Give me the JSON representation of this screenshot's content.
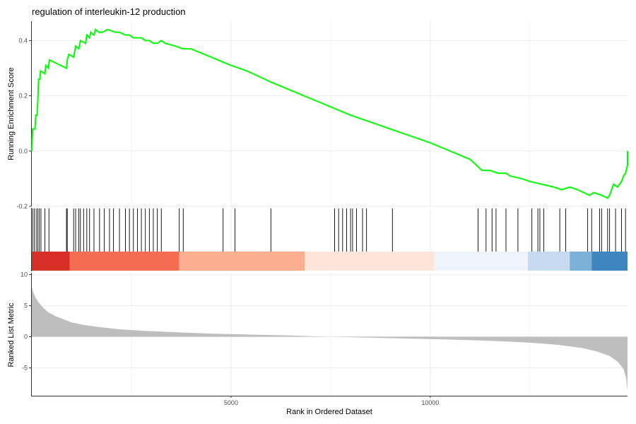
{
  "chart_data": {
    "type": "line",
    "title": "regulation of interleukin-12 production",
    "xlabel": "Rank in Ordered Dataset",
    "xlim": [
      0,
      14950
    ],
    "x_ticks": [
      5000,
      10000
    ],
    "grid": true,
    "running_es": {
      "ylabel": "Running Enrichment Score",
      "ylim": [
        -0.2,
        0.47
      ],
      "y_ticks": [
        -0.2,
        0.0,
        0.2,
        0.4
      ],
      "line_color": "#00ff00",
      "points": [
        [
          0,
          0.0
        ],
        [
          20,
          0.08
        ],
        [
          80,
          0.08
        ],
        [
          100,
          0.13
        ],
        [
          130,
          0.13
        ],
        [
          150,
          0.18
        ],
        [
          170,
          0.26
        ],
        [
          200,
          0.26
        ],
        [
          220,
          0.29
        ],
        [
          330,
          0.28
        ],
        [
          350,
          0.31
        ],
        [
          420,
          0.3
        ],
        [
          440,
          0.33
        ],
        [
          870,
          0.3
        ],
        [
          890,
          0.33
        ],
        [
          930,
          0.35
        ],
        [
          1050,
          0.34
        ],
        [
          1100,
          0.38
        ],
        [
          1180,
          0.37
        ],
        [
          1220,
          0.4
        ],
        [
          1350,
          0.39
        ],
        [
          1380,
          0.42
        ],
        [
          1450,
          0.41
        ],
        [
          1480,
          0.43
        ],
        [
          1560,
          0.42
        ],
        [
          1600,
          0.44
        ],
        [
          1680,
          0.43
        ],
        [
          1780,
          0.43
        ],
        [
          1900,
          0.44
        ],
        [
          2100,
          0.43
        ],
        [
          2200,
          0.43
        ],
        [
          2350,
          0.42
        ],
        [
          2450,
          0.42
        ],
        [
          2550,
          0.41
        ],
        [
          2650,
          0.41
        ],
        [
          2750,
          0.41
        ],
        [
          2850,
          0.4
        ],
        [
          2950,
          0.4
        ],
        [
          3050,
          0.39
        ],
        [
          3150,
          0.39
        ],
        [
          3250,
          0.4
        ],
        [
          3350,
          0.39
        ],
        [
          3600,
          0.38
        ],
        [
          3800,
          0.37
        ],
        [
          4000,
          0.37
        ],
        [
          5000,
          0.31
        ],
        [
          5200,
          0.3
        ],
        [
          5400,
          0.29
        ],
        [
          6000,
          0.25
        ],
        [
          7000,
          0.19
        ],
        [
          8000,
          0.13
        ],
        [
          9000,
          0.08
        ],
        [
          10000,
          0.03
        ],
        [
          11000,
          -0.03
        ],
        [
          11300,
          -0.07
        ],
        [
          11500,
          -0.07
        ],
        [
          11700,
          -0.08
        ],
        [
          11900,
          -0.08
        ],
        [
          12000,
          -0.09
        ],
        [
          12300,
          -0.1
        ],
        [
          12500,
          -0.11
        ],
        [
          12800,
          -0.12
        ],
        [
          13100,
          -0.13
        ],
        [
          13300,
          -0.14
        ],
        [
          13500,
          -0.13
        ],
        [
          13700,
          -0.14
        ],
        [
          14000,
          -0.16
        ],
        [
          14100,
          -0.15
        ],
        [
          14300,
          -0.16
        ],
        [
          14450,
          -0.17
        ],
        [
          14500,
          -0.16
        ],
        [
          14550,
          -0.14
        ],
        [
          14600,
          -0.12
        ],
        [
          14700,
          -0.13
        ],
        [
          14800,
          -0.11
        ],
        [
          14850,
          -0.09
        ],
        [
          14900,
          -0.08
        ],
        [
          14950,
          -0.05
        ],
        [
          15050,
          -0.05
        ],
        [
          15100,
          -0.03
        ],
        [
          15250,
          -0.03
        ],
        [
          15300,
          -0.01
        ],
        [
          15400,
          0.0
        ]
      ]
    },
    "hit_positions": [
      20,
      60,
      110,
      150,
      190,
      230,
      330,
      430,
      870,
      890,
      1050,
      1100,
      1180,
      1220,
      1300,
      1380,
      1450,
      1560,
      1700,
      1820,
      1950,
      2050,
      2200,
      2350,
      2450,
      2550,
      2650,
      2750,
      2850,
      2950,
      3050,
      3150,
      3250,
      3700,
      3800,
      4800,
      5100,
      6000,
      7600,
      7700,
      7800,
      7900,
      8000,
      8050,
      8150,
      8300,
      8400,
      9050,
      11200,
      11400,
      11550,
      11650,
      11900,
      12200,
      12550,
      12700,
      12750,
      12850,
      13250,
      13400,
      13950,
      14050,
      14250,
      14300,
      14450,
      14500,
      14650,
      14800,
      14900
    ],
    "rank_color_bands": [
      {
        "from": 0,
        "to": 950,
        "color": "#d73027"
      },
      {
        "from": 950,
        "to": 3700,
        "color": "#f46d52"
      },
      {
        "from": 3700,
        "to": 6850,
        "color": "#fcae91"
      },
      {
        "from": 6850,
        "to": 10100,
        "color": "#fee5d9"
      },
      {
        "from": 10100,
        "to": 12450,
        "color": "#eff3fb"
      },
      {
        "from": 12450,
        "to": 13500,
        "color": "#c6dbef"
      },
      {
        "from": 13500,
        "to": 14050,
        "color": "#7bb0d7"
      },
      {
        "from": 14050,
        "to": 14950,
        "color": "#3f86be"
      }
    ],
    "ranked_metric": {
      "ylabel": "Ranked List Metric",
      "ylim": [
        -9.5,
        10.3
      ],
      "y_ticks": [
        -5,
        0,
        5,
        10
      ],
      "fill_color": "#bebebe",
      "points": [
        [
          0,
          8.0
        ],
        [
          30,
          7.3
        ],
        [
          80,
          6.5
        ],
        [
          150,
          5.7
        ],
        [
          250,
          4.9
        ],
        [
          400,
          4.0
        ],
        [
          600,
          3.3
        ],
        [
          800,
          2.8
        ],
        [
          1000,
          2.3
        ],
        [
          1300,
          1.9
        ],
        [
          1700,
          1.55
        ],
        [
          2200,
          1.2
        ],
        [
          2800,
          0.95
        ],
        [
          3500,
          0.75
        ],
        [
          4500,
          0.5
        ],
        [
          5500,
          0.35
        ],
        [
          6500,
          0.2
        ],
        [
          7200,
          0.05
        ],
        [
          7500,
          0.0
        ],
        [
          8500,
          -0.15
        ],
        [
          9500,
          -0.3
        ],
        [
          10500,
          -0.45
        ],
        [
          11500,
          -0.65
        ],
        [
          12500,
          -0.95
        ],
        [
          13200,
          -1.3
        ],
        [
          13800,
          -1.8
        ],
        [
          14200,
          -2.4
        ],
        [
          14500,
          -3.1
        ],
        [
          14700,
          -4.0
        ],
        [
          14850,
          -5.2
        ],
        [
          14920,
          -6.8
        ],
        [
          14950,
          -8.8
        ]
      ]
    }
  }
}
